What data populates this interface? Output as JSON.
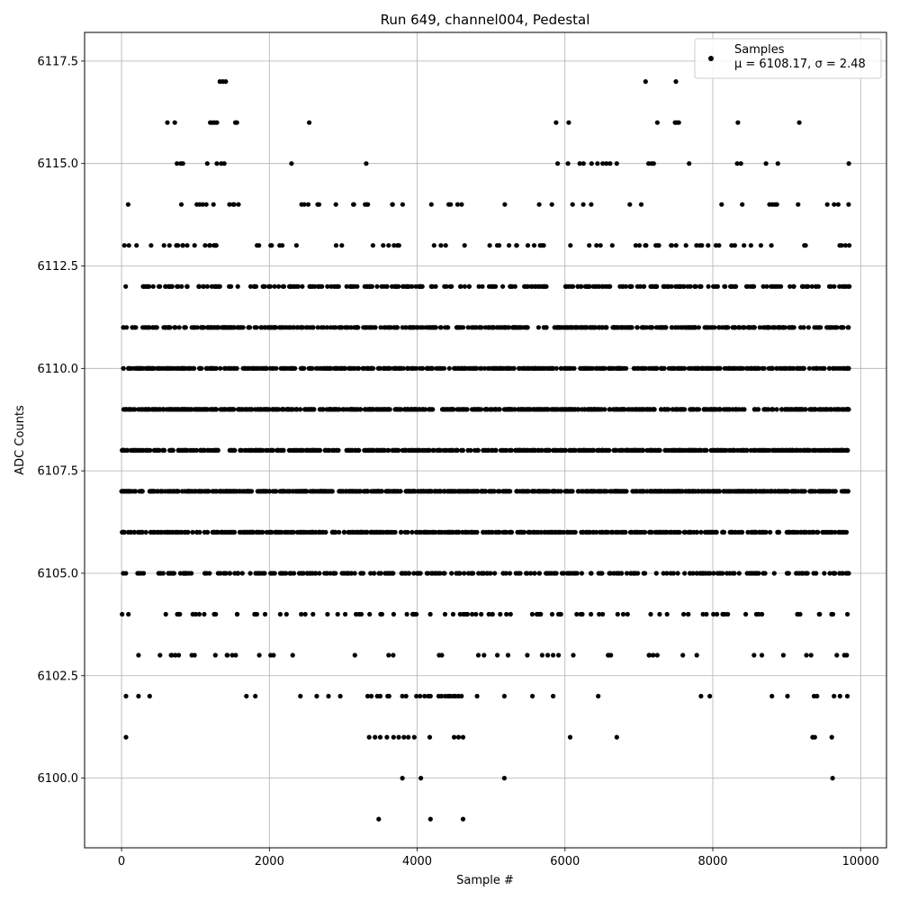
{
  "chart_data": {
    "type": "scatter",
    "title": "Run 649, channel004, Pedestal",
    "xlabel": "Sample #",
    "ylabel": "ADC Counts",
    "xlim": [
      -500,
      10350
    ],
    "ylim": [
      6098.3,
      6118.2
    ],
    "x_ticks": [
      0,
      2000,
      4000,
      6000,
      8000,
      10000
    ],
    "x_tick_labels": [
      "0",
      "2000",
      "4000",
      "6000",
      "8000",
      "10000"
    ],
    "y_ticks": [
      6100.0,
      6102.5,
      6105.0,
      6107.5,
      6110.0,
      6112.5,
      6115.0,
      6117.5
    ],
    "y_tick_labels": [
      "6100.0",
      "6102.5",
      "6105.0",
      "6107.5",
      "6110.0",
      "6112.5",
      "6115.0",
      "6117.5"
    ],
    "grid": true,
    "legend_position": "top-right",
    "series": [
      {
        "name": "Samples",
        "color": "#000000",
        "marker": "circle",
        "n_samples": 9850,
        "levels": [
          {
            "y": 6099,
            "x": [
              3480,
              4180,
              4620
            ]
          },
          {
            "y": 6100,
            "x": [
              3800,
              4050,
              5180,
              9620
            ]
          },
          {
            "y": 6101,
            "x": [
              60,
              3350,
              3430,
              3500,
              3590,
              3680,
              3750,
              3820,
              3880,
              3960,
              4170,
              4500,
              4560,
              4620,
              6070,
              6700,
              9350,
              9380,
              9610
            ]
          },
          {
            "y": 6102,
            "x": [
              60,
              230,
              380,
              1690,
              1810,
              2420,
              2640,
              2800,
              2960,
              3330,
              3380,
              3460,
              3500,
              3600,
              3620,
              3800,
              3850,
              3990,
              4040,
              4100,
              4150,
              4180,
              4290,
              4330,
              4380,
              4420,
              4450,
              4490,
              4520,
              4560,
              4600,
              4810,
              5180,
              5560,
              5840,
              6450,
              7840,
              7960,
              8800,
              9010,
              9370,
              9410,
              9640,
              9720,
              9820
            ]
          }
        ],
        "dense_levels": [
          6102,
          6103,
          6104,
          6105,
          6106,
          6107,
          6108,
          6109,
          6110,
          6111,
          6112,
          6113,
          6114
        ],
        "sparse_levels": [
          {
            "y": 6115,
            "x": [
              750,
              800,
              830,
              1160,
              1290,
              1350,
              1390,
              2300,
              3310,
              5900,
              6040,
              6200,
              6250,
              6360,
              6440,
              6510,
              6560,
              6610,
              6700,
              7130,
              7170,
              7200,
              7680,
              8330,
              8380,
              8720,
              8880,
              9840
            ]
          },
          {
            "y": 6116,
            "x": [
              620,
              720,
              1200,
              1230,
              1260,
              1290,
              1540,
              1560,
              2540,
              5880,
              6050,
              7250,
              7490,
              7510,
              7540,
              8340,
              9170
            ]
          },
          {
            "y": 6117,
            "x": [
              1330,
              1370,
              1410,
              7090,
              7500
            ]
          }
        ]
      }
    ],
    "legend": {
      "label": "Samples",
      "stats": "μ = 6108.17, σ = 2.48"
    }
  }
}
